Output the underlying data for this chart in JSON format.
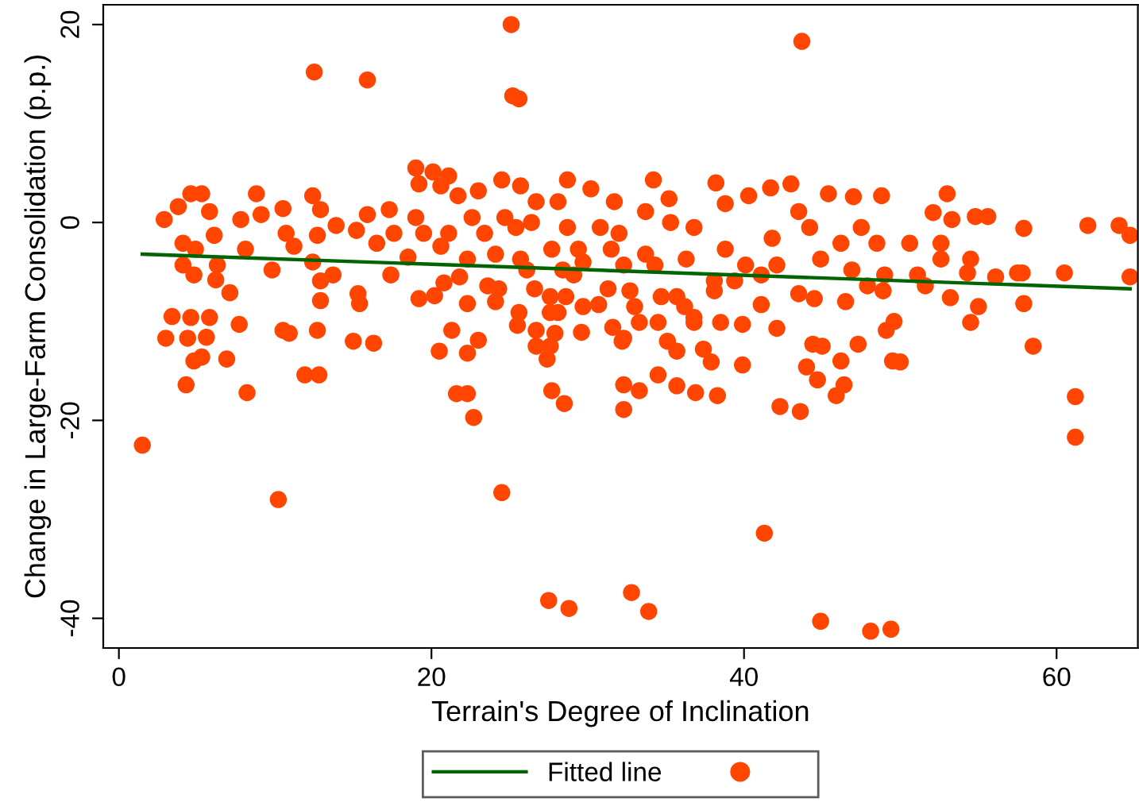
{
  "chart_data": {
    "type": "scatter",
    "xlabel": "Terrain's Degree of Inclination",
    "ylabel": "Change in Large-Farm Consolidation (p.p.)",
    "xlim": [
      -1.0,
      65.2
    ],
    "ylim": [
      -43.0,
      22.0
    ],
    "xticks": [
      0,
      20,
      40,
      60
    ],
    "yticks": [
      -40,
      -20,
      0,
      20
    ],
    "grid": false,
    "legend": "bottom",
    "marker": "circle",
    "series": [
      {
        "type": "line",
        "name": "Fitted line",
        "color": "#006400",
        "line_style": "solid",
        "marker": "none",
        "x": [
          1.5,
          64.7
        ],
        "values": [
          -3.2,
          -6.7
        ]
      },
      {
        "color": "#ff4500",
        "x": [
          1.5,
          10.2,
          12.5,
          15.9,
          25.1,
          25.2,
          25.6,
          24.5,
          27.5,
          28.8,
          32.8,
          33.9,
          43.7,
          41.3,
          44.9,
          48.1,
          49.4,
          61.2,
          61.2,
          58.5,
          57.9,
          62.0,
          64.0,
          64.7,
          64.7,
          60.5,
          57.8,
          57.9,
          53.0,
          52.1,
          53.3,
          54.8,
          55.6,
          57.5,
          56.1,
          55.0,
          54.5,
          53.2,
          54.5,
          34.2,
          38.2,
          41.7,
          43.0,
          45.4,
          47.0,
          48.8,
          40.3,
          38.8,
          35.2,
          32.3,
          35.1,
          35.7,
          36.8,
          38.5,
          39.9,
          42.1,
          37.4,
          37.9,
          39.9,
          44.4,
          45.0,
          47.3,
          44.0,
          44.7,
          46.2,
          45.9,
          46.4,
          42.3,
          43.6,
          49.5,
          50.0,
          49.1,
          49.6,
          32.3,
          33.3,
          34.5,
          35.7,
          36.9,
          38.3,
          32.3,
          33.3,
          34.5,
          33.0,
          35.7,
          36.2,
          36.8,
          41.1,
          38.1,
          32.0,
          33.7,
          35.3,
          33.7,
          36.8,
          38.8,
          40.1,
          41.8,
          43.5,
          44.2,
          46.2,
          47.5,
          48.5,
          50.6,
          52.6,
          52.6,
          49.0,
          51.1,
          54.3,
          44.9,
          46.9,
          47.9,
          48.9,
          46.5,
          43.5,
          44.5,
          39.4,
          38.1,
          41.1,
          42.1,
          36.3,
          34.3,
          32.3,
          32.7,
          34.7,
          51.6,
          2.9,
          3.8,
          4.6,
          5.3,
          5.8,
          4.1,
          4.1,
          4.9,
          6.1,
          6.3,
          4.8,
          6.2,
          7.1,
          7.8,
          8.8,
          9.1,
          8.1,
          9.8,
          10.5,
          10.7,
          11.2,
          12.4,
          12.9,
          12.4,
          12.9,
          12.9,
          13.7,
          13.9,
          12.7,
          15.2,
          15.3,
          15.4,
          15.9,
          17.3,
          16.5,
          17.6,
          17.4,
          18.5,
          19.0,
          20.1,
          21.1,
          19.2,
          20.6,
          19.0,
          19.5,
          20.6,
          21.1,
          21.7,
          19.2,
          20.2,
          20.8,
          21.8,
          22.3,
          21.3,
          20.5,
          22.3,
          23.0,
          21.6,
          22.3,
          22.7,
          23.0,
          24.5,
          25.7,
          22.6,
          23.4,
          24.1,
          22.3,
          24.7,
          25.4,
          26.4,
          26.7,
          23.6,
          24.3,
          24.1,
          25.7,
          26.1,
          26.6,
          27.6,
          28.6,
          27.6,
          28.1,
          25.6,
          25.5,
          26.7,
          27.9,
          26.7,
          27.6,
          27.4,
          27.7,
          28.5,
          29.7,
          30.7,
          29.6,
          31.6,
          32.2,
          31.3,
          28.4,
          29.1,
          28.7,
          30.2,
          28.1,
          28.7,
          29.4,
          30.8,
          31.7,
          31.5,
          29.7,
          27.7,
          3.4,
          4.6,
          5.8,
          3.0,
          4.4,
          5.6,
          4.8,
          5.3,
          4.3,
          6.9,
          7.7,
          8.2,
          10.5,
          10.9,
          12.7,
          11.9,
          12.8,
          15.0,
          16.3
        ],
        "values": [
          -22.5,
          -28.0,
          15.2,
          14.4,
          20.0,
          12.8,
          12.5,
          -27.3,
          -38.2,
          -39.0,
          -37.4,
          -39.3,
          18.3,
          -31.4,
          -40.3,
          -41.3,
          -41.1,
          -17.6,
          -21.7,
          -12.5,
          -8.2,
          -0.3,
          -0.3,
          -1.3,
          -5.5,
          -5.1,
          -5.1,
          -0.6,
          2.9,
          1.0,
          0.3,
          0.6,
          0.6,
          -5.1,
          -5.5,
          -8.5,
          -10.1,
          -7.6,
          -3.7,
          4.3,
          4.0,
          3.5,
          3.9,
          2.9,
          2.6,
          2.7,
          2.7,
          1.9,
          2.4,
          -11.7,
          -12.0,
          -13.0,
          -10.1,
          -10.1,
          -10.3,
          -10.7,
          -12.8,
          -14.1,
          -14.4,
          -12.3,
          -12.5,
          -12.3,
          -14.6,
          -15.9,
          -14.0,
          -17.5,
          -16.4,
          -18.6,
          -19.1,
          -14.0,
          -14.1,
          -10.9,
          -10.0,
          -16.4,
          -17.0,
          -15.4,
          -16.5,
          -17.2,
          -17.5,
          -18.9,
          -10.1,
          -10.1,
          -8.5,
          -7.5,
          -8.5,
          -9.6,
          -8.3,
          -6.9,
          -1.1,
          1.1,
          0.0,
          -3.2,
          -0.5,
          -2.7,
          -4.3,
          -1.6,
          1.1,
          -0.5,
          -2.1,
          -0.5,
          -2.1,
          -2.1,
          -2.1,
          -3.7,
          -5.3,
          -5.3,
          -5.1,
          -3.7,
          -4.8,
          -6.4,
          -6.9,
          -8.0,
          -7.2,
          -7.7,
          -5.9,
          -5.9,
          -5.3,
          -4.3,
          -3.7,
          -4.3,
          -4.3,
          -6.9,
          -7.5,
          -6.4,
          0.3,
          1.6,
          2.9,
          2.9,
          1.1,
          -2.1,
          -4.3,
          -2.7,
          -1.3,
          -4.3,
          -5.3,
          -5.8,
          -7.1,
          0.3,
          2.9,
          0.8,
          -2.7,
          -4.8,
          1.4,
          -1.1,
          -2.4,
          2.7,
          1.3,
          -4.0,
          -5.9,
          -7.9,
          -5.3,
          -0.3,
          -1.3,
          -0.8,
          -7.2,
          -8.2,
          0.8,
          1.3,
          -2.1,
          -1.1,
          -5.3,
          -3.5,
          5.5,
          5.1,
          4.7,
          3.9,
          3.7,
          0.5,
          -1.1,
          -2.4,
          -1.1,
          2.7,
          -7.7,
          -7.4,
          -6.1,
          -5.5,
          -8.2,
          -10.9,
          -13.0,
          -13.2,
          -11.9,
          -17.3,
          -17.3,
          -19.7,
          3.2,
          4.3,
          3.7,
          0.5,
          -1.1,
          -3.2,
          -3.7,
          0.5,
          -0.5,
          0.0,
          2.1,
          -6.4,
          -6.7,
          -8.0,
          -3.7,
          -4.8,
          -6.7,
          -7.5,
          -7.5,
          -9.1,
          -9.1,
          -9.1,
          -10.4,
          -10.9,
          -11.2,
          -12.5,
          -12.5,
          -13.8,
          -17.0,
          -18.3,
          -8.5,
          -8.3,
          -11.1,
          -10.6,
          -12.0,
          -6.7,
          -4.8,
          -5.3,
          4.3,
          3.4,
          2.1,
          -0.5,
          -2.7,
          -0.5,
          2.1,
          -2.7,
          -4.0,
          -2.7,
          -9.5,
          -9.6,
          -9.6,
          -11.7,
          -11.7,
          -11.6,
          -14.0,
          -13.6,
          -16.4,
          -13.8,
          -10.3,
          -17.2,
          -10.9,
          -11.2,
          -10.9,
          -15.4,
          -15.4,
          -12.0,
          -12.2
        ]
      }
    ]
  }
}
